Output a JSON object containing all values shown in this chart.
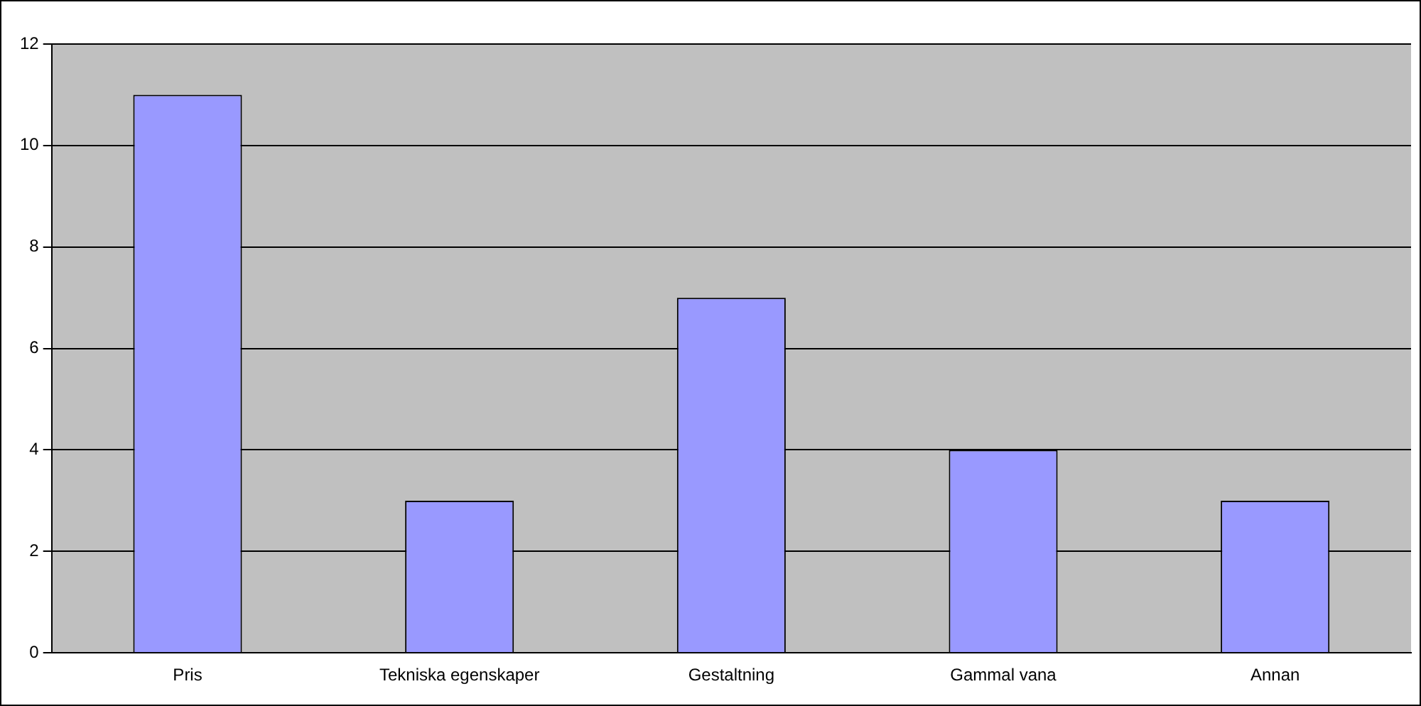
{
  "chart_data": {
    "type": "bar",
    "categories": [
      "Pris",
      "Tekniska egenskaper",
      "Gestaltning",
      "Gammal vana",
      "Annan"
    ],
    "values": [
      11,
      3,
      7,
      4,
      3
    ],
    "color": "#9999ff",
    "ylim": [
      0,
      12
    ],
    "yticks": [
      0,
      2,
      4,
      6,
      8,
      10,
      12
    ],
    "grid": "y",
    "legend": false
  }
}
